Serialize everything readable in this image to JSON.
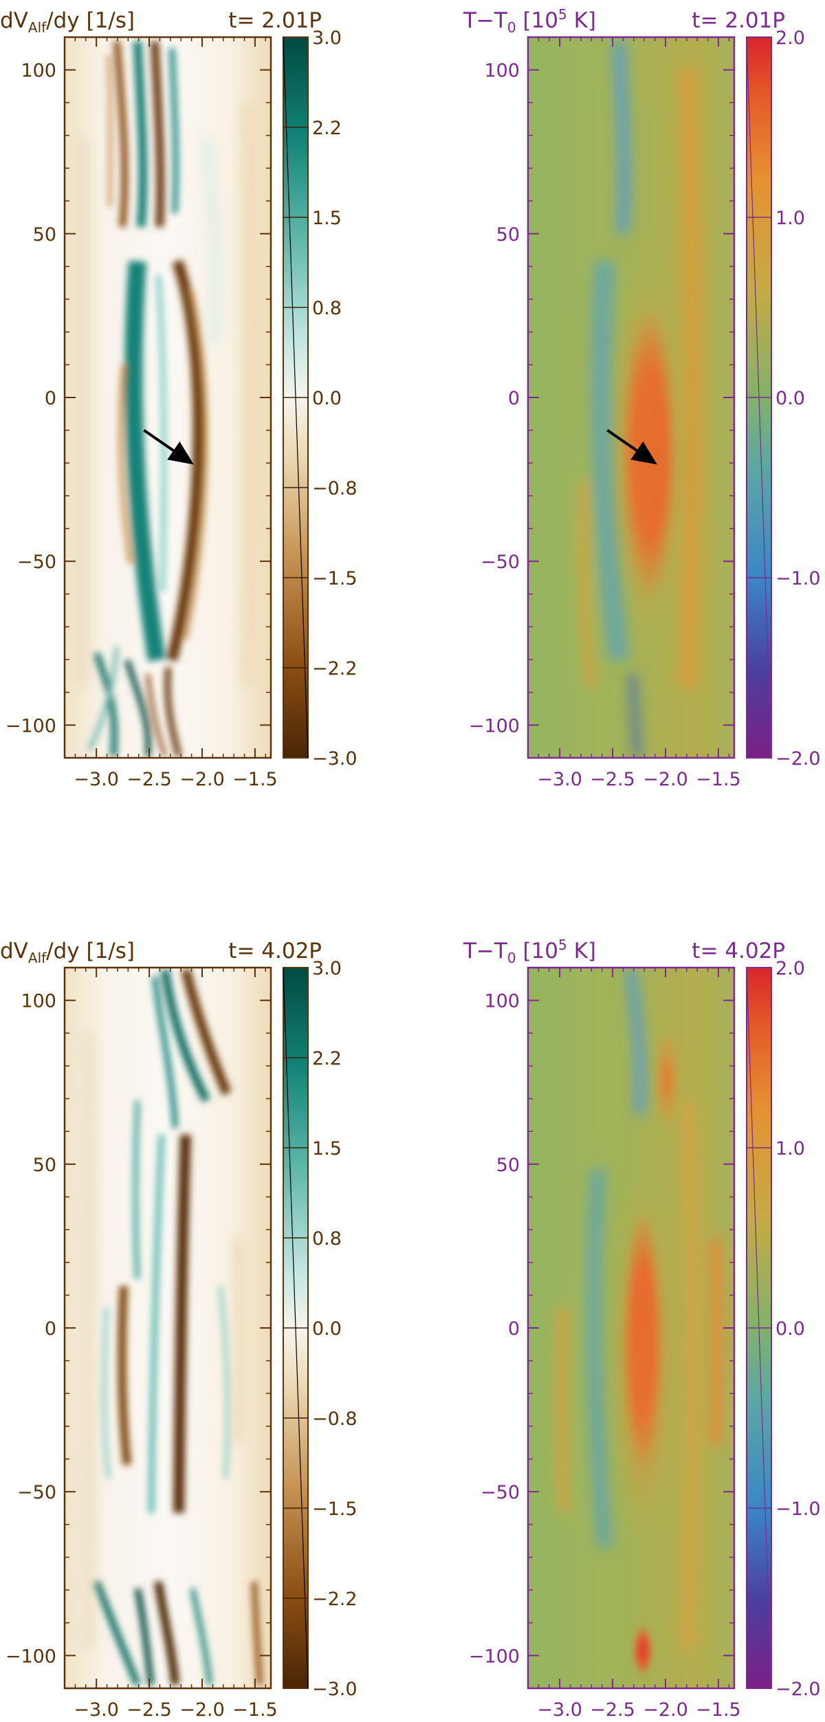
{
  "chart_data": [
    {
      "type": "heatmap",
      "panel": "top-left",
      "title": {
        "main": "dV",
        "sub": "Alf",
        "rest": "/dy [1/s]",
        "time": "t= 2.01P"
      },
      "x_ticks": [
        "−3.0",
        "−2.5",
        "−2.0",
        "−1.5"
      ],
      "x_tick_values": [
        -3.0,
        -2.5,
        -2.0,
        -1.5
      ],
      "xlim": [
        -3.3,
        -1.35
      ],
      "y_ticks": [
        "100",
        "50",
        "0",
        "−50",
        "−100"
      ],
      "y_tick_values": [
        100,
        50,
        0,
        -50,
        -100
      ],
      "ylim": [
        -110,
        110
      ],
      "colorbar": {
        "ticks": [
          "3.0",
          "2.2",
          "1.5",
          "0.8",
          "0.0",
          "−0.8",
          "−1.5",
          "−2.2",
          "−3.0"
        ],
        "range": [
          -3.0,
          3.0
        ],
        "colormap": "brown-white-teal"
      },
      "arrow": {
        "from": [
          -2.55,
          -10
        ],
        "to": [
          -2.1,
          -20
        ]
      },
      "axis_color": "#5a330a"
    },
    {
      "type": "heatmap",
      "panel": "top-right",
      "title": {
        "main": "T−T",
        "sub": "0",
        "rest": " [10",
        "sup": "5",
        "rest2": " K]",
        "time": "t= 2.01P"
      },
      "x_ticks": [
        "−3.0",
        "−2.5",
        "−2.0",
        "−1.5"
      ],
      "x_tick_values": [
        -3.0,
        -2.5,
        -2.0,
        -1.5
      ],
      "xlim": [
        -3.3,
        -1.35
      ],
      "y_ticks": [
        "100",
        "50",
        "0",
        "−50",
        "−100"
      ],
      "y_tick_values": [
        100,
        50,
        0,
        -50,
        -100
      ],
      "ylim": [
        -110,
        110
      ],
      "colorbar": {
        "ticks": [
          "2.0",
          "1.0",
          "0.0",
          "−1.0",
          "−2.0"
        ],
        "range": [
          -2.0,
          2.0
        ],
        "colormap": "purple-blue-green-orange-red"
      },
      "arrow": {
        "from": [
          -2.55,
          -10
        ],
        "to": [
          -2.1,
          -20
        ]
      },
      "axis_color": "#7b2b8f"
    },
    {
      "type": "heatmap",
      "panel": "bottom-left",
      "title": {
        "main": "dV",
        "sub": "Alf",
        "rest": "/dy [1/s]",
        "time": "t= 4.02P"
      },
      "x_ticks": [
        "−3.0",
        "−2.5",
        "−2.0",
        "−1.5"
      ],
      "x_tick_values": [
        -3.0,
        -2.5,
        -2.0,
        -1.5
      ],
      "xlim": [
        -3.3,
        -1.35
      ],
      "y_ticks": [
        "100",
        "50",
        "0",
        "−50",
        "−100"
      ],
      "y_tick_values": [
        100,
        50,
        0,
        -50,
        -100
      ],
      "ylim": [
        -110,
        110
      ],
      "colorbar": {
        "ticks": [
          "3.0",
          "2.2",
          "1.5",
          "0.8",
          "0.0",
          "−0.8",
          "−1.5",
          "−2.2",
          "−3.0"
        ],
        "range": [
          -3.0,
          3.0
        ],
        "colormap": "brown-white-teal"
      },
      "axis_color": "#5a330a"
    },
    {
      "type": "heatmap",
      "panel": "bottom-right",
      "title": {
        "main": "T−T",
        "sub": "0",
        "rest": " [10",
        "sup": "5",
        "rest2": " K]",
        "time": "t= 4.02P"
      },
      "x_ticks": [
        "−3.0",
        "−2.5",
        "−2.0",
        "−1.5"
      ],
      "x_tick_values": [
        -3.0,
        -2.5,
        -2.0,
        -1.5
      ],
      "xlim": [
        -3.3,
        -1.35
      ],
      "y_ticks": [
        "100",
        "50",
        "0",
        "−50",
        "−100"
      ],
      "y_tick_values": [
        100,
        50,
        0,
        -50,
        -100
      ],
      "ylim": [
        -110,
        110
      ],
      "colorbar": {
        "ticks": [
          "2.0",
          "1.0",
          "0.0",
          "−1.0",
          "−2.0"
        ],
        "range": [
          -2.0,
          2.0
        ],
        "colormap": "purple-blue-green-orange-red"
      },
      "axis_color": "#7b2b8f"
    }
  ]
}
